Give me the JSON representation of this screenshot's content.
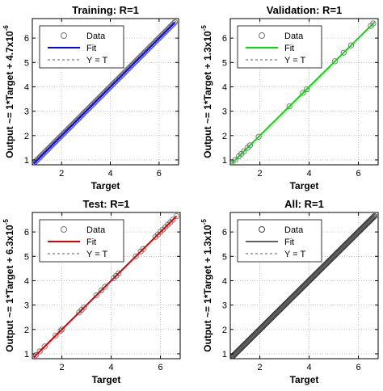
{
  "chart_data": [
    {
      "type": "scatter",
      "title": "Training: R=1",
      "xlabel": "Target",
      "ylabel": "Output ~= 1*Target + 4.7x10",
      "ylabel_exp": "-6",
      "xlim": [
        0.8,
        6.8
      ],
      "ylim": [
        0.8,
        6.8
      ],
      "xticks": [
        2,
        4,
        6
      ],
      "yticks": [
        1,
        2,
        3,
        4,
        5,
        6
      ],
      "grid": true,
      "legend_position": "top-left",
      "fit_color": "#0000ff",
      "marker_color": "#707070",
      "legend": [
        "Data",
        "Fit",
        "Y = T"
      ],
      "x_range": [
        0.85,
        6.65
      ],
      "n_points": 130,
      "series": [
        {
          "name": "Data",
          "kind": "markers",
          "x": [],
          "y": []
        },
        {
          "name": "Fit",
          "kind": "line",
          "x": [
            0.85,
            6.65
          ],
          "y": [
            0.85,
            6.65
          ]
        },
        {
          "name": "Y = T",
          "kind": "dashed",
          "x": [
            0.85,
            6.65
          ],
          "y": [
            0.85,
            6.65
          ]
        }
      ]
    },
    {
      "type": "scatter",
      "title": "Validation: R=1",
      "xlabel": "Target",
      "ylabel": "Output ~= 1*Target + 1.3x10",
      "ylabel_exp": "-5",
      "xlim": [
        0.8,
        6.8
      ],
      "ylim": [
        0.8,
        6.8
      ],
      "xticks": [
        2,
        4,
        6
      ],
      "yticks": [
        1,
        2,
        3,
        4,
        5,
        6
      ],
      "grid": true,
      "legend_position": "top-left",
      "fit_color": "#00e000",
      "marker_color": "#707070",
      "legend": [
        "Data",
        "Fit",
        "Y = T"
      ],
      "x_range": [
        0.85,
        6.65
      ],
      "series": [
        {
          "name": "Data",
          "kind": "markers",
          "x": [
            0.85,
            1.0,
            1.15,
            1.25,
            1.35,
            1.5,
            1.6,
            1.95,
            3.2,
            3.75,
            3.9,
            5.05,
            5.4,
            5.7,
            6.5,
            6.6
          ],
          "y": [
            0.85,
            1.0,
            1.15,
            1.25,
            1.35,
            1.5,
            1.6,
            1.95,
            3.2,
            3.75,
            3.9,
            5.05,
            5.4,
            5.7,
            6.5,
            6.6
          ]
        },
        {
          "name": "Fit",
          "kind": "line",
          "x": [
            0.85,
            6.65
          ],
          "y": [
            0.85,
            6.65
          ]
        },
        {
          "name": "Y = T",
          "kind": "dashed",
          "x": [
            0.85,
            6.65
          ],
          "y": [
            0.85,
            6.65
          ]
        }
      ]
    },
    {
      "type": "scatter",
      "title": "Test: R=1",
      "xlabel": "Target",
      "ylabel": "Output ~= 1*Target + 6.3x10",
      "ylabel_exp": "-5",
      "xlim": [
        0.8,
        6.8
      ],
      "ylim": [
        0.8,
        6.8
      ],
      "xticks": [
        2,
        4,
        6
      ],
      "yticks": [
        1,
        2,
        3,
        4,
        5,
        6
      ],
      "grid": true,
      "legend_position": "top-left",
      "fit_color": "#dd0000",
      "marker_color": "#707070",
      "legend": [
        "Data",
        "Fit",
        "Y = T"
      ],
      "x_range": [
        0.85,
        6.65
      ],
      "series": [
        {
          "name": "Data",
          "kind": "markers",
          "x": [
            0.95,
            1.1,
            1.3,
            1.75,
            1.95,
            2.0,
            2.7,
            2.8,
            2.9,
            3.4,
            3.6,
            3.75,
            4.1,
            4.2,
            4.3,
            5.0,
            5.2,
            5.3,
            5.8,
            5.9,
            6.0,
            6.1,
            6.2,
            6.3,
            6.4,
            6.5,
            6.65
          ],
          "y": [
            0.95,
            1.1,
            1.3,
            1.75,
            1.95,
            2.0,
            2.7,
            2.8,
            2.9,
            3.4,
            3.6,
            3.75,
            4.1,
            4.2,
            4.3,
            5.0,
            5.2,
            5.3,
            5.8,
            5.9,
            6.0,
            6.1,
            6.2,
            6.3,
            6.4,
            6.5,
            6.65
          ]
        },
        {
          "name": "Fit",
          "kind": "line",
          "x": [
            0.85,
            6.65
          ],
          "y": [
            0.85,
            6.65
          ]
        },
        {
          "name": "Y = T",
          "kind": "dashed",
          "x": [
            0.85,
            6.65
          ],
          "y": [
            0.85,
            6.65
          ]
        }
      ]
    },
    {
      "type": "scatter",
      "title": "All: R=1",
      "xlabel": "Target",
      "ylabel": "Output ~= 1*Target + 1.3x10",
      "ylabel_exp": "-5",
      "xlim": [
        0.8,
        6.8
      ],
      "ylim": [
        0.8,
        6.8
      ],
      "xticks": [
        2,
        4,
        6
      ],
      "yticks": [
        1,
        2,
        3,
        4,
        5,
        6
      ],
      "grid": true,
      "legend_position": "top-left",
      "fit_color": "#606060",
      "marker_color": "#404040",
      "legend": [
        "Data",
        "Fit",
        "Y = T"
      ],
      "x_range": [
        0.85,
        6.65
      ],
      "n_points": 180,
      "series": [
        {
          "name": "Data",
          "kind": "markers",
          "x": [],
          "y": []
        },
        {
          "name": "Fit",
          "kind": "line",
          "x": [
            0.85,
            6.65
          ],
          "y": [
            0.85,
            6.65
          ]
        },
        {
          "name": "Y = T",
          "kind": "dashed",
          "x": [
            0.85,
            6.65
          ],
          "y": [
            0.85,
            6.65
          ]
        }
      ]
    }
  ]
}
